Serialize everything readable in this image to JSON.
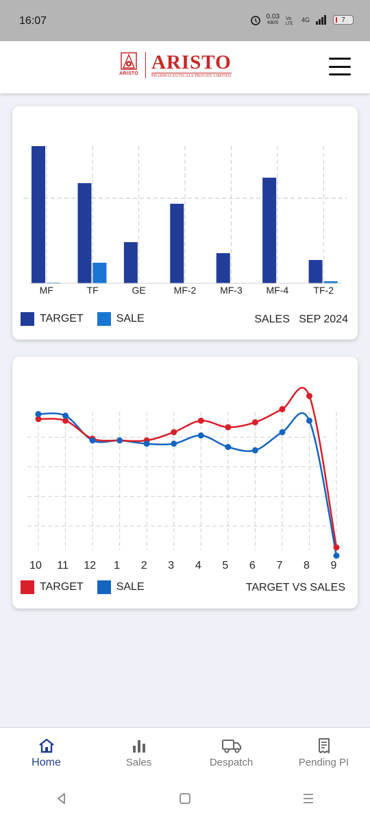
{
  "status_bar": {
    "time": "16:07",
    "net_speed_value": "0.03",
    "net_speed_unit": "KB/S",
    "network_type": "4G",
    "battery_level": "7"
  },
  "header": {
    "brand_name": "ARISTO",
    "brand_subtitle": "PHARMACEUTICALS PRIVATE LIMITED",
    "logo_mark_text": "ARISTO",
    "brand_color": "#c62828"
  },
  "colors": {
    "target_bar": "#213d99",
    "sale_bar": "#1976d2",
    "target_line": "#d81f2a",
    "sale_line": "#1565c0",
    "nav_active": "#1e3f8f"
  },
  "bar_card": {
    "legend_target": "TARGET",
    "legend_sale": "SALE",
    "caption": "SALES   SEP 2024"
  },
  "line_card": {
    "legend_target": "TARGET",
    "legend_sale": "SALE",
    "caption": "TARGET VS SALES"
  },
  "chart_data": [
    {
      "type": "bar",
      "categories": [
        "MF",
        "TF",
        "GE",
        "MF-2",
        "MF-3",
        "MF-4",
        "TF-2"
      ],
      "series": [
        {
          "name": "TARGET",
          "values": [
            100,
            73,
            30,
            58,
            22,
            77,
            17
          ]
        },
        {
          "name": "SALE",
          "values": [
            0.5,
            15,
            0,
            0,
            0,
            0,
            1.5
          ]
        }
      ],
      "ylim": [
        0,
        100
      ],
      "grid": true,
      "legend": "bottom-left"
    },
    {
      "type": "line",
      "categories": [
        "10",
        "11",
        "12",
        "1",
        "2",
        "3",
        "4",
        "5",
        "6",
        "7",
        "8",
        "9"
      ],
      "series": [
        {
          "name": "TARGET",
          "values": [
            83,
            82,
            71,
            70,
            70,
            75,
            82,
            78,
            81,
            89,
            97,
            5
          ]
        },
        {
          "name": "SALE",
          "values": [
            86,
            85,
            70,
            70,
            68,
            68,
            73,
            66,
            64,
            75,
            82,
            0
          ]
        }
      ],
      "ylim": [
        0,
        100
      ],
      "grid": true,
      "legend": "bottom-left"
    }
  ],
  "bottom_nav": [
    {
      "label": "Home",
      "icon": "home-icon",
      "active": true
    },
    {
      "label": "Sales",
      "icon": "bar-chart-icon",
      "active": false
    },
    {
      "label": "Despatch",
      "icon": "truck-icon",
      "active": false
    },
    {
      "label": "Pending PI",
      "icon": "receipt-icon",
      "active": false
    }
  ],
  "system_nav": [
    "back-icon",
    "home-square-icon",
    "recents-icon"
  ]
}
